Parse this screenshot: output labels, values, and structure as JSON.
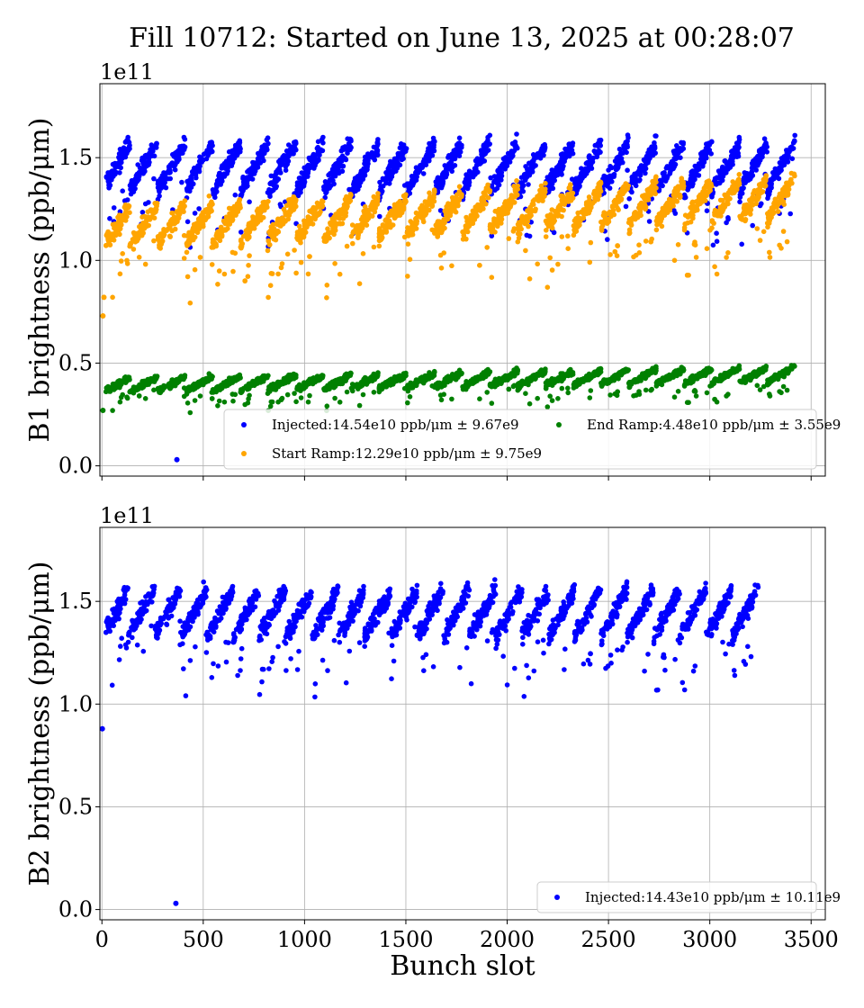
{
  "chart_data": {
    "type": "scatter",
    "title": "Fill 10712: Started on June 13, 2025 at 00:28:07",
    "xlabel": "Bunch slot",
    "xlim": [
      -10,
      3570
    ],
    "xticks": [
      0,
      500,
      1000,
      1500,
      2000,
      2500,
      3000,
      3500
    ],
    "xtick_labels": [
      "0",
      "500",
      "1000",
      "1500",
      "2000",
      "2500",
      "3000",
      "3500"
    ],
    "grid": true,
    "panels": [
      {
        "ylabel": "B1 brightness (ppb/μm)",
        "offset_text": "1e11",
        "ylim": [
          -0.05,
          1.86
        ],
        "yticks": [
          0.0,
          0.5,
          1.0,
          1.5
        ],
        "ytick_labels": [
          "0.0",
          "0.5",
          "1.0",
          "1.5"
        ],
        "show_xtick_labels": false,
        "legend_location": "lower right",
        "legend_columns": 2,
        "series": [
          {
            "name": "Injected:14.54e10 ppb/μm ± 9.67e9",
            "color": "#0000ff",
            "x_range": [
              0,
              3420
            ],
            "mean": 1.454,
            "std": 0.0967,
            "outliers": [
              [
                370,
                0.03
              ]
            ]
          },
          {
            "name": "Start Ramp:12.29e10 ppb/μm ± 9.75e9",
            "color": "#ffa500",
            "x_range": [
              0,
              3420
            ],
            "mean": 1.229,
            "std": 0.0975,
            "outliers": [
              [
                5,
                0.73
              ],
              [
                10,
                0.82
              ]
            ]
          },
          {
            "name": "End Ramp:4.48e10 ppb/μm ± 3.55e9",
            "color": "#008000",
            "x_range": [
              0,
              3420
            ],
            "mean": 0.448,
            "std": 0.0355,
            "outliers": [
              [
                5,
                0.27
              ]
            ]
          }
        ]
      },
      {
        "ylabel": "B2 brightness (ppb/μm)",
        "offset_text": "1e11",
        "ylim": [
          -0.05,
          1.86
        ],
        "yticks": [
          0.0,
          0.5,
          1.0,
          1.5
        ],
        "ytick_labels": [
          "0.0",
          "0.5",
          "1.0",
          "1.5"
        ],
        "show_xtick_labels": true,
        "legend_location": "lower right",
        "legend_columns": 1,
        "series": [
          {
            "name": "Injected:14.43e10 ppb/μm ± 10.11e9",
            "color": "#0000ff",
            "x_range": [
              0,
              3240
            ],
            "mean": 1.443,
            "std": 0.1011,
            "outliers": [
              [
                2,
                0.88
              ],
              [
                365,
                0.03
              ]
            ]
          }
        ]
      }
    ]
  }
}
